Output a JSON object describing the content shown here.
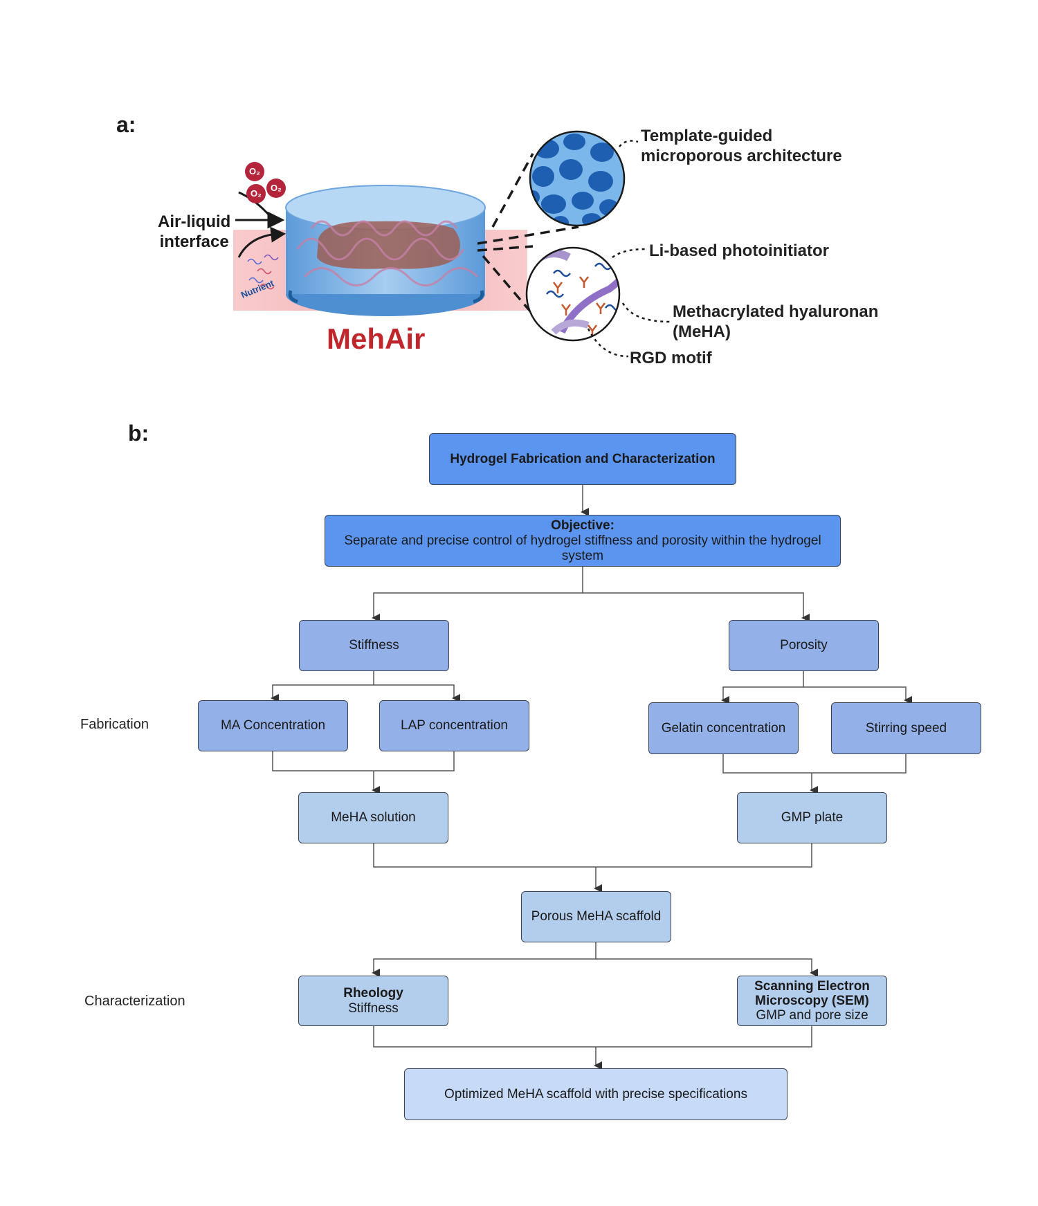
{
  "panel_a": {
    "label": "a:",
    "title": "MehAir",
    "left_label_line1": "Air-liquid",
    "left_label_line2": "interface",
    "nutrient_label": "Nutrient",
    "oxygen_label": "O₂",
    "callouts": {
      "template_line1": "Template-guided",
      "template_line2": "microporous architecture",
      "photoinitiator": "Li-based photoinitiator",
      "meha_line1": "Methacrylated hyaluronan",
      "meha_line2": "(MeHA)",
      "rgd": "RGD motif"
    },
    "colors": {
      "title": "#c0272d",
      "hydrogel": "#7fb3e6",
      "medium": "#f4b6b8",
      "oxygen": "#b4243b"
    }
  },
  "panel_b": {
    "label": "b:",
    "row_labels": {
      "fabrication": "Fabrication",
      "characterization": "Characterization"
    },
    "nodes": {
      "root": "Hydrogel Fabrication and Characterization",
      "objective_title": "Objective:",
      "objective_text": "Separate and precise control of hydrogel stiffness and porosity within the hydrogel system",
      "stiffness": "Stiffness",
      "porosity": "Porosity",
      "ma_conc": "MA Concentration",
      "lap_conc": "LAP concentration",
      "gelatin_conc": "Gelatin concentration",
      "stirring": "Stirring speed",
      "meha_solution": "MeHA solution",
      "gmp_plate": "GMP plate",
      "porous_scaffold": "Porous MeHA scaffold",
      "rheology_title": "Rheology",
      "rheology_text": "Stiffness",
      "sem_title": "Scanning Electron Microscopy (SEM)",
      "sem_text": "GMP and pore size",
      "optimized": "Optimized MeHA scaffold with precise specifications"
    },
    "colors": {
      "level0": "#5b95f0",
      "level1": "#93b1e8",
      "level2": "#b3cdec",
      "level3": "#c7dbf8"
    }
  }
}
